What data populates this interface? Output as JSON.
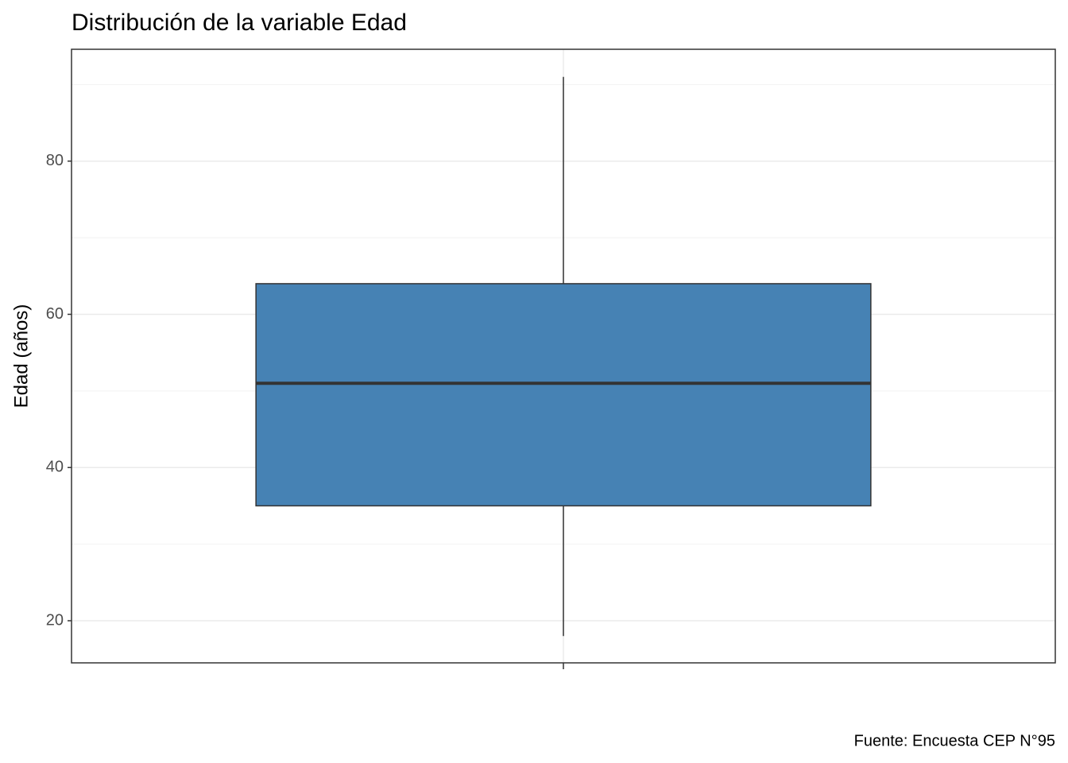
{
  "chart_data": {
    "type": "box",
    "title": "Distribución de la variable Edad",
    "y_label": "Edad (años)",
    "caption": "Fuente: Encuesta CEP N°95",
    "categories": [
      null
    ],
    "min": [
      18
    ],
    "q1": [
      35
    ],
    "median": [
      51
    ],
    "q3": [
      64
    ],
    "max": [
      91
    ],
    "color": "#4682b4",
    "ylim": [
      14.5,
      94.6
    ],
    "yticks": [
      20,
      40,
      60,
      80
    ],
    "yminorticks": [
      30,
      50,
      70,
      90
    ],
    "grid": true
  }
}
